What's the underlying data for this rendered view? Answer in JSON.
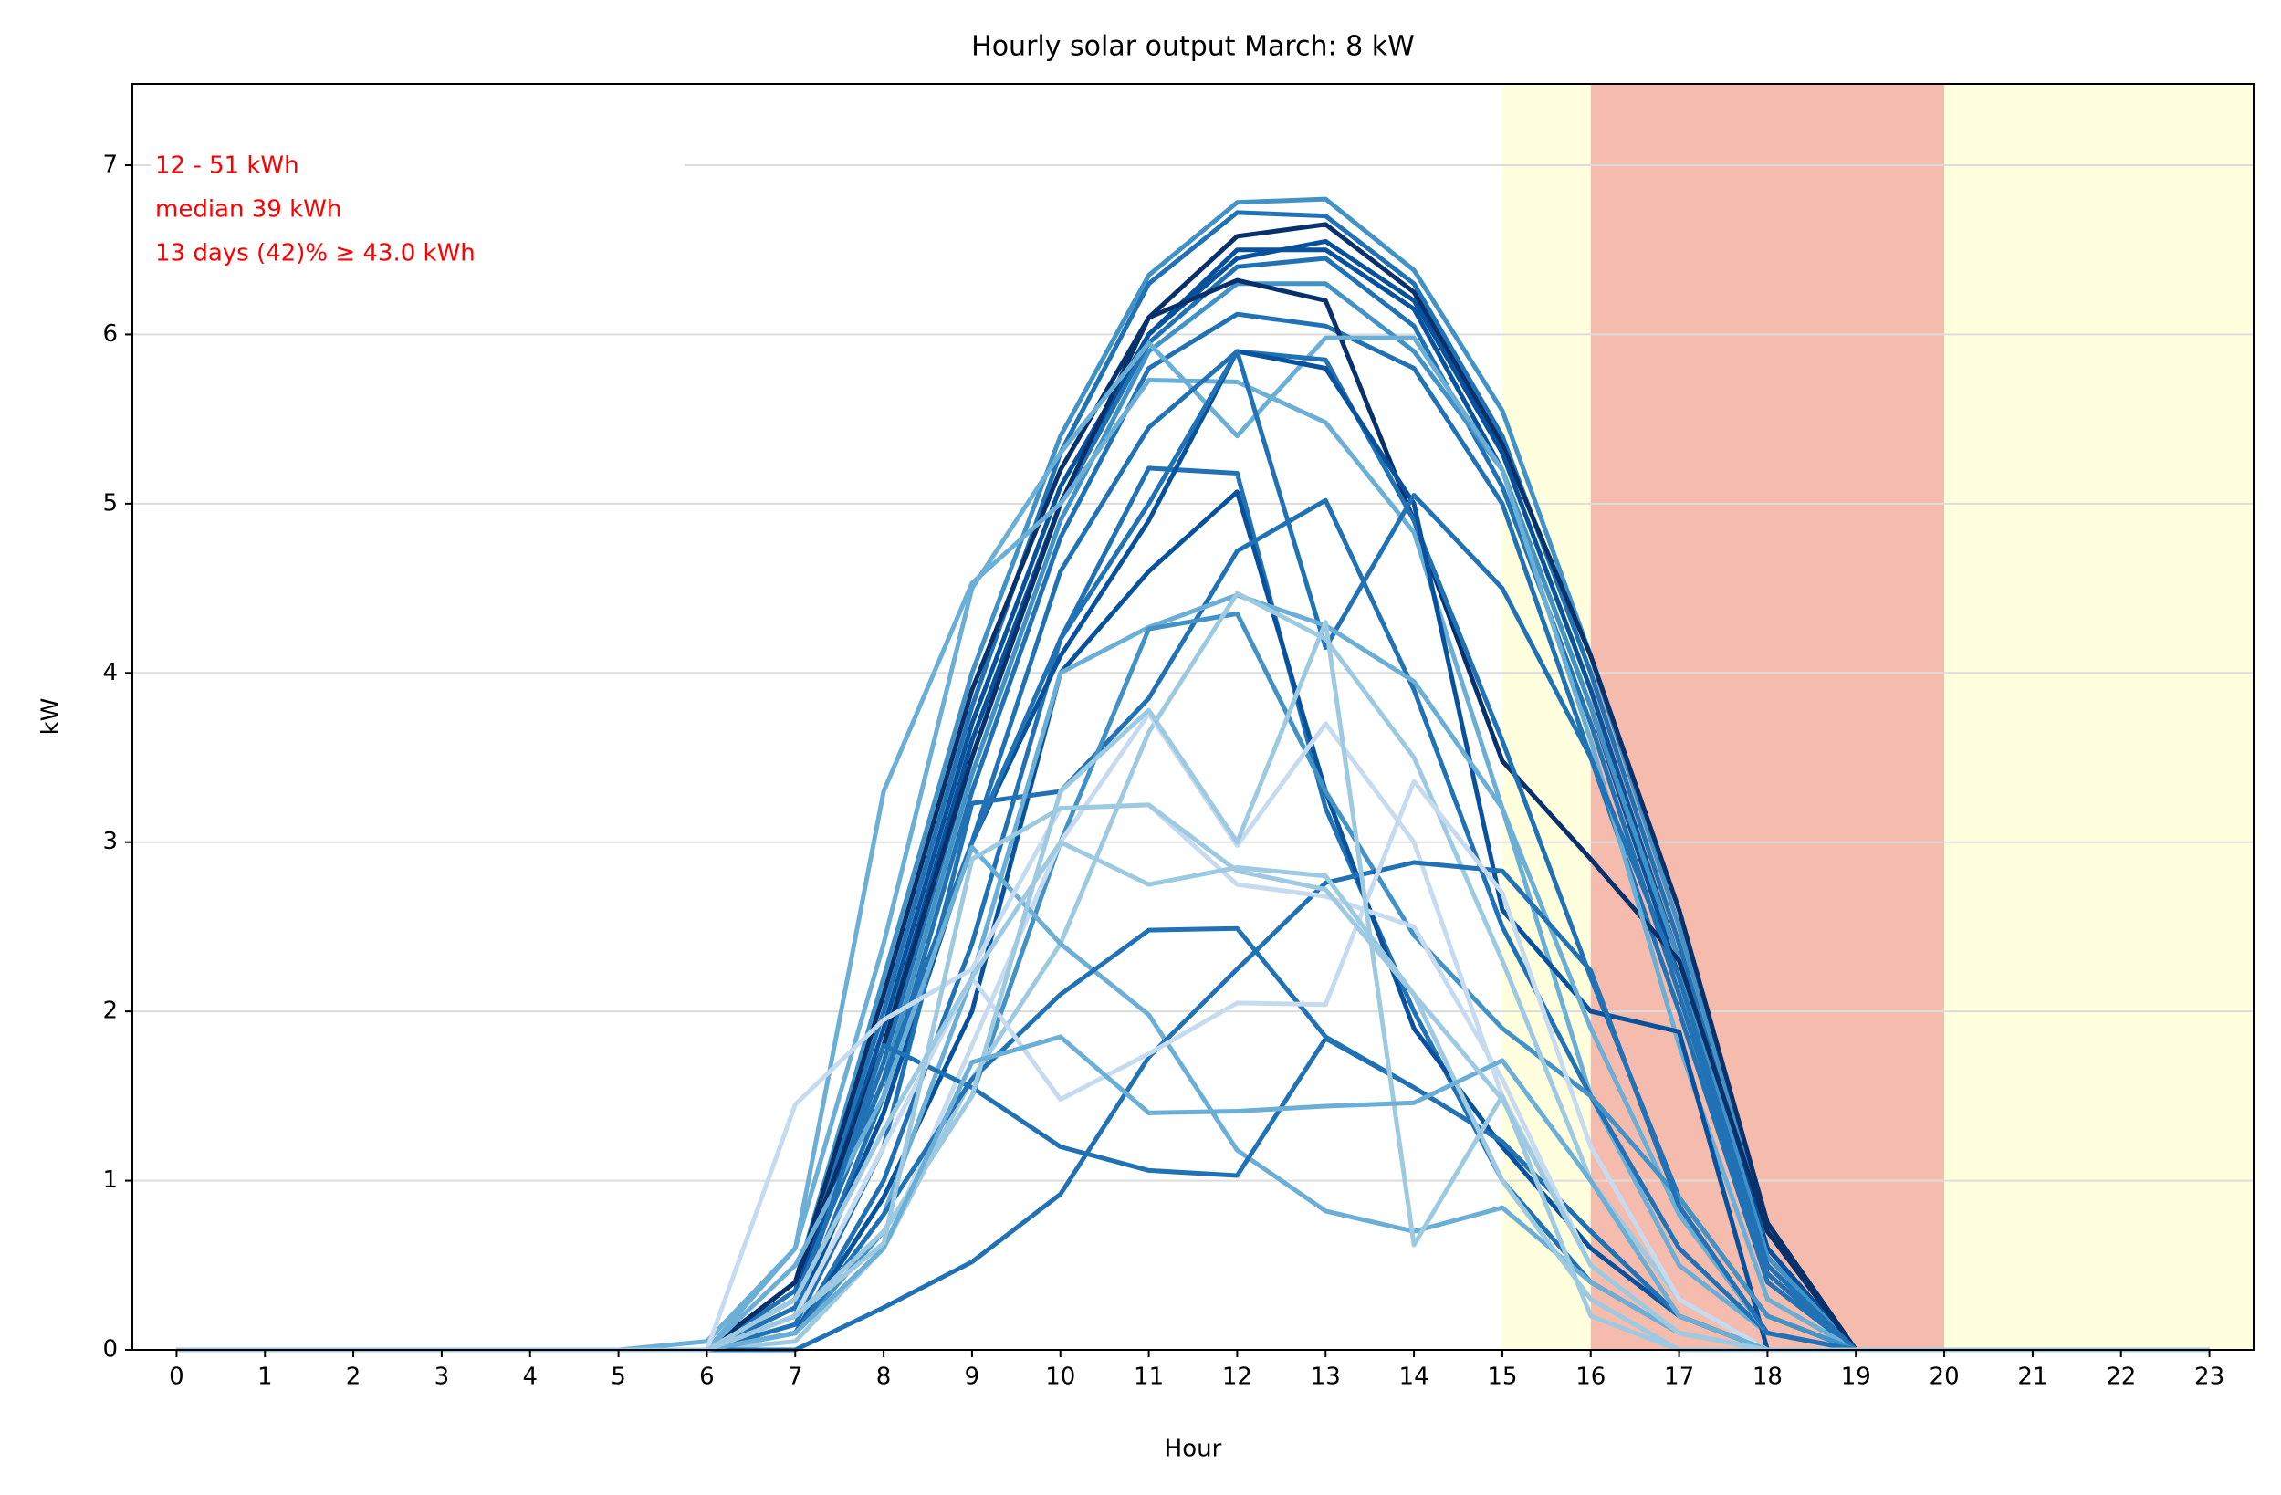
{
  "chart_data": {
    "type": "line",
    "title": "Hourly solar output March:  8 kW",
    "x_label": "Hour",
    "y_label": "kW",
    "annotations": [
      "12 - 51 kWh",
      "median  39 kWh",
      "13 days (42)% ≥ 43.0 kWh"
    ],
    "annotation_color": "#ff0000",
    "x": [
      0,
      1,
      2,
      3,
      4,
      5,
      6,
      7,
      8,
      9,
      10,
      11,
      12,
      13,
      14,
      15,
      16,
      17,
      18,
      19,
      20,
      21,
      22,
      23
    ],
    "xlim": [
      -0.5,
      23.5
    ],
    "xticks": [
      0,
      1,
      2,
      3,
      4,
      5,
      6,
      7,
      8,
      9,
      10,
      11,
      12,
      13,
      14,
      15,
      16,
      17,
      18,
      19,
      20,
      21,
      22,
      23
    ],
    "ylim": [
      0,
      7.48
    ],
    "yticks": [
      0,
      1,
      2,
      3,
      4,
      5,
      6,
      7
    ],
    "grid": true,
    "spans": [
      {
        "x0": 15,
        "x1": 16,
        "color": "#ffffdd"
      },
      {
        "x0": 16,
        "x1": 20,
        "color": "#f5bcad"
      },
      {
        "x0": 20,
        "x1": 23.5,
        "color": "#ffffdd"
      }
    ],
    "series": [
      {
        "color": "#4292c6",
        "values": [
          0,
          0,
          0,
          0,
          0,
          0,
          0,
          0.4,
          2.2,
          4.0,
          5.4,
          6.35,
          6.78,
          6.8,
          6.38,
          5.55,
          4.1,
          2.5,
          0.7,
          0,
          0,
          0,
          0,
          0
        ]
      },
      {
        "color": "#2171b5",
        "values": [
          0,
          0,
          0,
          0,
          0,
          0,
          0,
          0.35,
          2.0,
          3.8,
          5.3,
          6.3,
          6.72,
          6.7,
          6.3,
          5.4,
          4.0,
          2.4,
          0.6,
          0,
          0,
          0,
          0,
          0
        ]
      },
      {
        "color": "#08306b",
        "values": [
          0,
          0,
          0,
          0,
          0,
          0,
          0,
          0.4,
          2.1,
          3.9,
          5.2,
          6.1,
          6.58,
          6.65,
          6.25,
          5.35,
          4.1,
          2.6,
          0.75,
          0,
          0,
          0,
          0,
          0
        ]
      },
      {
        "color": "#08519c",
        "values": [
          0,
          0,
          0,
          0,
          0,
          0,
          0,
          0.3,
          1.9,
          3.7,
          5.1,
          6.0,
          6.45,
          6.55,
          6.2,
          5.3,
          3.9,
          2.3,
          0.6,
          0,
          0,
          0,
          0,
          0
        ]
      },
      {
        "color": "#08519c",
        "values": [
          0,
          0,
          0,
          0,
          0,
          0,
          0,
          0.3,
          1.8,
          3.6,
          5.0,
          6.0,
          6.5,
          6.5,
          6.15,
          5.2,
          3.8,
          2.2,
          0.5,
          0,
          0,
          0,
          0,
          0
        ]
      },
      {
        "color": "#2171b5",
        "values": [
          0,
          0,
          0,
          0,
          0,
          0,
          0,
          0.25,
          1.7,
          3.5,
          5.0,
          5.95,
          6.4,
          6.45,
          6.05,
          5.1,
          3.7,
          2.1,
          0.45,
          0,
          0,
          0,
          0,
          0
        ]
      },
      {
        "color": "#4292c6",
        "values": [
          0,
          0,
          0,
          0,
          0,
          0,
          0,
          0.3,
          1.6,
          3.4,
          4.9,
          5.9,
          6.3,
          6.3,
          5.9,
          5.2,
          3.8,
          2.3,
          0.55,
          0,
          0,
          0,
          0,
          0
        ]
      },
      {
        "color": "#2171b5",
        "values": [
          0,
          0,
          0,
          0,
          0,
          0,
          0,
          0.2,
          1.5,
          3.3,
          4.8,
          5.8,
          6.12,
          6.05,
          5.8,
          5.0,
          3.5,
          2.0,
          0.4,
          0,
          0,
          0,
          0,
          0
        ]
      },
      {
        "color": "#08306b",
        "values": [
          0,
          0,
          0,
          0,
          0,
          0,
          0,
          0.4,
          1.8,
          3.5,
          5.0,
          6.1,
          6.32,
          6.2,
          4.9,
          3.48,
          2.9,
          2.3,
          0.7,
          0,
          0,
          0,
          0,
          0
        ]
      },
      {
        "color": "#6baed6",
        "values": [
          0,
          0,
          0,
          0,
          0,
          0,
          0,
          0.6,
          2.4,
          4.5,
          5.3,
          5.95,
          5.4,
          5.98,
          5.98,
          5.2,
          3.6,
          1.8,
          0.3,
          0,
          0,
          0,
          0,
          0
        ]
      },
      {
        "color": "#6baed6",
        "values": [
          0,
          0,
          0,
          0,
          0,
          0,
          0.05,
          0.6,
          3.3,
          4.53,
          5.0,
          5.73,
          5.72,
          5.48,
          4.83,
          3.2,
          1.5,
          0.5,
          0.1,
          0,
          0,
          0,
          0,
          0
        ]
      },
      {
        "color": "#2171b5",
        "values": [
          0,
          0,
          0,
          0,
          0,
          0,
          0,
          0.2,
          1.4,
          3.0,
          4.6,
          5.45,
          5.9,
          5.85,
          4.9,
          3.6,
          2.2,
          0.9,
          0.2,
          0,
          0,
          0,
          0,
          0
        ]
      },
      {
        "color": "#2171b5",
        "values": [
          0,
          0,
          0,
          0,
          0,
          0,
          0,
          0.1,
          1.0,
          2.4,
          4.2,
          5.21,
          5.18,
          3.2,
          2.0,
          1.0,
          0.4,
          0.1,
          0,
          0,
          0,
          0,
          0,
          0
        ]
      },
      {
        "color": "#08519c",
        "values": [
          0,
          0,
          0,
          0,
          0,
          0,
          0,
          0.2,
          1.4,
          3.0,
          4.1,
          4.9,
          5.9,
          5.8,
          5.0,
          2.6,
          2.0,
          1.88,
          0,
          0,
          0,
          0,
          0,
          0
        ]
      },
      {
        "color": "#08519c",
        "values": [
          0,
          0,
          0,
          0,
          0,
          0,
          0,
          0.1,
          0.9,
          2.0,
          4.0,
          4.6,
          5.07,
          3.3,
          1.9,
          1.2,
          0.6,
          0.2,
          0,
          0,
          0,
          0,
          0,
          0
        ]
      },
      {
        "color": "#2171b5",
        "values": [
          0,
          0,
          0,
          0,
          0,
          0,
          0,
          0.3,
          1.6,
          3.0,
          4.2,
          5.0,
          5.9,
          4.15,
          5.05,
          4.5,
          3.5,
          2.2,
          0.5,
          0,
          0,
          0,
          0,
          0
        ]
      },
      {
        "color": "#2171b5",
        "values": [
          0,
          0,
          0,
          0,
          0,
          0,
          0,
          0.15,
          1.2,
          3.23,
          3.3,
          3.85,
          4.72,
          5.02,
          3.9,
          2.5,
          1.5,
          0.6,
          0.1,
          0,
          0,
          0,
          0,
          0
        ]
      },
      {
        "color": "#6baed6",
        "values": [
          0,
          0,
          0,
          0,
          0,
          0,
          0,
          0.1,
          0.8,
          2.2,
          4.0,
          4.27,
          4.46,
          4.28,
          3.95,
          3.2,
          1.9,
          0.8,
          0.1,
          0,
          0,
          0,
          0,
          0
        ]
      },
      {
        "color": "#4292c6",
        "values": [
          0,
          0,
          0,
          0,
          0,
          0,
          0,
          0.1,
          0.7,
          1.5,
          3.0,
          4.26,
          4.35,
          3.3,
          2.45,
          1.9,
          1.5,
          0.9,
          0.2,
          0,
          0,
          0,
          0,
          0
        ]
      },
      {
        "color": "#9ecae1",
        "values": [
          0,
          0,
          0,
          0,
          0,
          0,
          0,
          0.05,
          0.6,
          1.6,
          2.4,
          3.65,
          4.47,
          4.2,
          3.5,
          2.3,
          1.0,
          0.3,
          0,
          0,
          0,
          0,
          0,
          0
        ]
      },
      {
        "color": "#c6dbef",
        "values": [
          0,
          0,
          0,
          0,
          0,
          0,
          0,
          0.1,
          0.6,
          1.8,
          3.0,
          3.76,
          2.98,
          3.7,
          3.0,
          1.5,
          0.5,
          0.1,
          0,
          0,
          0,
          0,
          0,
          0
        ]
      },
      {
        "color": "#6baed6",
        "values": [
          0,
          0,
          0,
          0,
          0,
          0,
          0,
          0.5,
          1.5,
          2.97,
          2.4,
          1.98,
          1.18,
          0.82,
          0.7,
          0.84,
          0.4,
          0.1,
          0,
          0,
          0,
          0,
          0,
          0
        ]
      },
      {
        "color": "#2171b5",
        "values": [
          0,
          0,
          0,
          0,
          0,
          0,
          0,
          0.2,
          1.8,
          1.55,
          1.2,
          1.06,
          1.03,
          1.84,
          1.55,
          1.23,
          0.7,
          0.2,
          0,
          0,
          0,
          0,
          0,
          0
        ]
      },
      {
        "color": "#2171b5",
        "values": [
          0,
          0,
          0,
          0,
          0,
          0,
          0,
          0,
          0.25,
          0.52,
          0.92,
          1.73,
          2.25,
          2.76,
          2.88,
          2.83,
          2.24,
          0.85,
          0.1,
          0,
          0,
          0,
          0,
          0
        ]
      },
      {
        "color": "#2171b5",
        "values": [
          0,
          0,
          0,
          0,
          0,
          0,
          0,
          0.1,
          0.8,
          1.6,
          2.1,
          2.48,
          2.49,
          1.85,
          1.55,
          1.23,
          0.7,
          0.2,
          0,
          0,
          0,
          0,
          0,
          0
        ]
      },
      {
        "color": "#c6dbef",
        "values": [
          0,
          0,
          0,
          0,
          0,
          0,
          0,
          0.2,
          1.2,
          2.2,
          1.48,
          1.75,
          2.05,
          2.04,
          3.36,
          2.7,
          1.2,
          0.3,
          0,
          0,
          0,
          0,
          0,
          0
        ]
      },
      {
        "color": "#c6dbef",
        "values": [
          0,
          0,
          0,
          0,
          0,
          0,
          0,
          1.45,
          1.95,
          2.25,
          3.2,
          3.22,
          2.75,
          2.68,
          2.5,
          1.6,
          0.5,
          0.1,
          0,
          0,
          0,
          0,
          0,
          0
        ]
      },
      {
        "color": "#9ecae1",
        "values": [
          0,
          0,
          0,
          0,
          0,
          0,
          0,
          0.3,
          1.3,
          2.2,
          3.0,
          2.75,
          2.85,
          2.8,
          2.1,
          1.0,
          0.3,
          0,
          0,
          0,
          0,
          0,
          0,
          0
        ]
      },
      {
        "color": "#9ecae1",
        "values": [
          0,
          0,
          0,
          0,
          0,
          0,
          0,
          0.2,
          0.7,
          1.5,
          3.3,
          3.78,
          3.0,
          4.3,
          0.62,
          1.5,
          0.2,
          0,
          0,
          0,
          0,
          0,
          0,
          0
        ]
      },
      {
        "color": "#6baed6",
        "values": [
          0,
          0,
          0,
          0,
          0,
          0,
          0,
          0.1,
          0.6,
          1.7,
          1.85,
          1.4,
          1.41,
          1.44,
          1.46,
          1.71,
          1.0,
          0.2,
          0,
          0,
          0,
          0,
          0,
          0
        ]
      },
      {
        "color": "#9ecae1",
        "values": [
          0,
          0,
          0,
          0,
          0,
          0,
          0,
          0.2,
          0.63,
          2.9,
          3.2,
          3.22,
          2.83,
          2.72,
          2.1,
          1.48,
          0.5,
          0.1,
          0,
          0,
          0,
          0,
          0,
          0
        ]
      }
    ]
  }
}
